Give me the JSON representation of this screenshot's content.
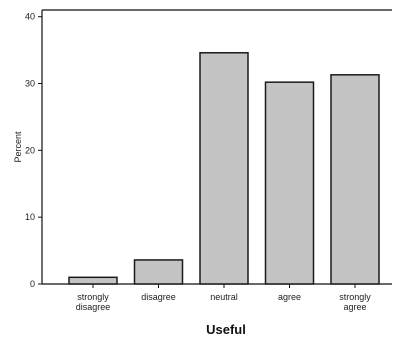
{
  "chart_data": {
    "type": "bar",
    "categories": [
      [
        "strongly",
        "disagree"
      ],
      [
        "disagree"
      ],
      [
        "neutral"
      ],
      [
        "agree"
      ],
      [
        "strongly",
        "agree"
      ]
    ],
    "values": [
      1,
      3.6,
      34.6,
      30.2,
      31.3
    ],
    "xlabel": "Useful",
    "ylabel": "Percent",
    "ylim": [
      0,
      41
    ],
    "yticks": [
      0,
      10,
      20,
      30,
      40
    ],
    "grid": false,
    "bar_fill": "#c4c4c4",
    "bar_stroke": "#1a1a1a"
  }
}
